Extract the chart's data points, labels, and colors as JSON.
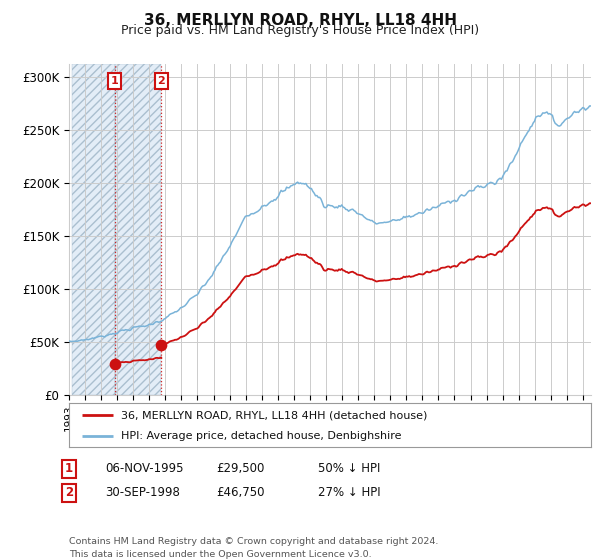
{
  "title": "36, MERLLYN ROAD, RHYL, LL18 4HH",
  "subtitle": "Price paid vs. HM Land Registry's House Price Index (HPI)",
  "ylabel_ticks": [
    "£0",
    "£50K",
    "£100K",
    "£150K",
    "£200K",
    "£250K",
    "£300K"
  ],
  "ytick_values": [
    0,
    50000,
    100000,
    150000,
    200000,
    250000,
    300000
  ],
  "ylim": [
    0,
    312000
  ],
  "xlim_start": 1993.2,
  "xlim_end": 2025.5,
  "sale1_date": 1995.85,
  "sale1_price": 29500,
  "sale1_label": "1",
  "sale2_date": 1998.75,
  "sale2_price": 46750,
  "sale2_label": "2",
  "hpi_color": "#7ab3d8",
  "price_color": "#cc1111",
  "annotation_box_color": "#cc1111",
  "shaded_region_color": "#dce9f5",
  "legend_label_price": "36, MERLLYN ROAD, RHYL, LL18 4HH (detached house)",
  "legend_label_hpi": "HPI: Average price, detached house, Denbighshire",
  "table_row1": [
    "1",
    "06-NOV-1995",
    "£29,500",
    "50% ↓ HPI"
  ],
  "table_row2": [
    "2",
    "30-SEP-1998",
    "£46,750",
    "27% ↓ HPI"
  ],
  "footnote": "Contains HM Land Registry data © Crown copyright and database right 2024.\nThis data is licensed under the Open Government Licence v3.0.",
  "background_color": "#ffffff",
  "grid_color": "#cccccc"
}
